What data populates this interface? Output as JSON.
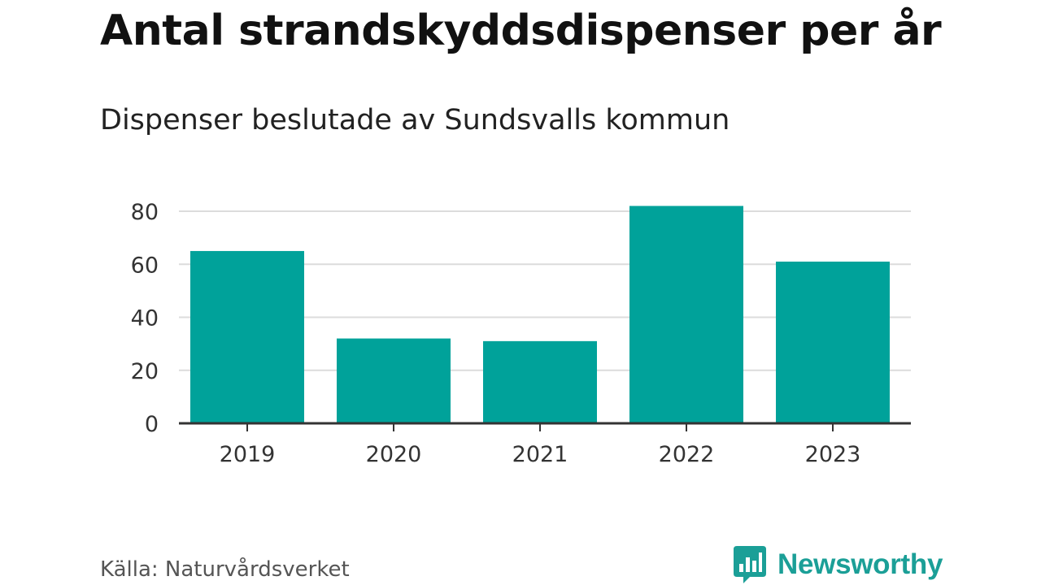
{
  "header": {
    "title": "Antal strandskyddsdispenser per år",
    "subtitle": "Dispenser beslutade av Sundsvalls kommun"
  },
  "footer": {
    "source": "Källa: Naturvårdsverket",
    "brand": "Newsworthy",
    "brand_color": "#1b9f97"
  },
  "colors": {
    "bar": "#00a29a",
    "grid": "#dcdcdc",
    "axis": "#333333",
    "tick_text": "#333333"
  },
  "chart_data": {
    "type": "bar",
    "title": "Antal strandskyddsdispenser per år",
    "subtitle": "Dispenser beslutade av Sundsvalls kommun",
    "xlabel": "",
    "ylabel": "",
    "categories": [
      "2019",
      "2020",
      "2021",
      "2022",
      "2023"
    ],
    "values": [
      65,
      32,
      31,
      82,
      61
    ],
    "ylim": [
      0,
      80
    ],
    "yticks": [
      0,
      20,
      40,
      60,
      80
    ],
    "grid": true,
    "legend": "none"
  }
}
